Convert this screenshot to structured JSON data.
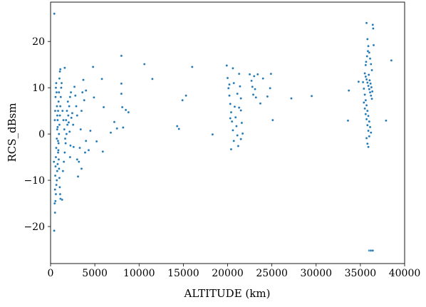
{
  "chart_data": {
    "type": "scatter",
    "xlabel": "ALTITUDE (km)",
    "ylabel": "RCS_dBsm",
    "xlim": [
      0,
      40000
    ],
    "ylim": [
      -28,
      28.5
    ],
    "xticks": [
      0,
      5000,
      10000,
      15000,
      20000,
      25000,
      30000,
      35000,
      40000
    ],
    "xtick_labels": [
      "0",
      "5000",
      "10000",
      "15000",
      "20000",
      "25000",
      "30000",
      "35000",
      "40000"
    ],
    "yticks": [
      -20,
      -10,
      0,
      10,
      20
    ],
    "ytick_labels": [
      "−20",
      "−10",
      "0",
      "10",
      "20"
    ],
    "grid": false,
    "marker_color": "#1f77b4",
    "points": [
      [
        420,
        26
      ],
      [
        380,
        -6
      ],
      [
        410,
        -20.9
      ],
      [
        460,
        -15
      ],
      [
        500,
        -12
      ],
      [
        530,
        -9
      ],
      [
        560,
        -7
      ],
      [
        600,
        -5
      ],
      [
        640,
        -3
      ],
      [
        700,
        -1
      ],
      [
        750,
        1
      ],
      [
        800,
        3
      ],
      [
        850,
        5
      ],
      [
        900,
        7
      ],
      [
        950,
        9
      ],
      [
        1000,
        12
      ],
      [
        1050,
        13.5
      ],
      [
        1100,
        14
      ],
      [
        500,
        -17
      ],
      [
        550,
        -14.5
      ],
      [
        600,
        -13
      ],
      [
        650,
        -11
      ],
      [
        700,
        -10
      ],
      [
        750,
        -8
      ],
      [
        800,
        -6.5
      ],
      [
        850,
        -4
      ],
      [
        900,
        -2
      ],
      [
        950,
        0
      ],
      [
        1000,
        2
      ],
      [
        1050,
        4
      ],
      [
        1100,
        6
      ],
      [
        1150,
        8
      ],
      [
        1200,
        10
      ],
      [
        1250,
        11
      ],
      [
        480,
        3
      ],
      [
        520,
        5
      ],
      [
        560,
        8
      ],
      [
        600,
        10
      ],
      [
        640,
        11
      ],
      [
        680,
        9
      ],
      [
        720,
        6
      ],
      [
        760,
        4
      ],
      [
        800,
        1.5
      ],
      [
        840,
        -1.5
      ],
      [
        880,
        -3.5
      ],
      [
        920,
        -5.5
      ],
      [
        960,
        -7.5
      ],
      [
        1000,
        -9.5
      ],
      [
        1040,
        -11.5
      ],
      [
        1080,
        -13
      ],
      [
        1120,
        -14
      ],
      [
        1300,
        -14.2
      ],
      [
        1400,
        -8
      ],
      [
        1500,
        -6
      ],
      [
        1600,
        -4
      ],
      [
        1700,
        -2
      ],
      [
        1800,
        0
      ],
      [
        1900,
        2
      ],
      [
        2000,
        4
      ],
      [
        2100,
        6
      ],
      [
        2200,
        8
      ],
      [
        2300,
        9
      ],
      [
        1350,
        5
      ],
      [
        1450,
        3
      ],
      [
        1550,
        1
      ],
      [
        1650,
        -1
      ],
      [
        1750,
        3
      ],
      [
        1850,
        5
      ],
      [
        1950,
        7
      ],
      [
        2050,
        2.5
      ],
      [
        2150,
        0.5
      ],
      [
        2250,
        -2.5
      ],
      [
        2350,
        3.5
      ],
      [
        2450,
        4.5
      ],
      [
        2550,
        2
      ],
      [
        2700,
        10.2
      ],
      [
        2800,
        8.3
      ],
      [
        2900,
        6
      ],
      [
        3000,
        4
      ],
      [
        3100,
        -9.2
      ],
      [
        3200,
        -6
      ],
      [
        3300,
        -3
      ],
      [
        3400,
        1
      ],
      [
        3500,
        5
      ],
      [
        3600,
        9
      ],
      [
        3700,
        11.7
      ],
      [
        3800,
        7.3
      ],
      [
        3900,
        -4
      ],
      [
        4000,
        -1.5
      ],
      [
        1600,
        14.3
      ],
      [
        2200,
        -5
      ],
      [
        2600,
        -2.8
      ],
      [
        3000,
        -5.5
      ],
      [
        3500,
        -7.5
      ],
      [
        4000,
        9.4
      ],
      [
        4300,
        -3.5
      ],
      [
        4500,
        0.7
      ],
      [
        4800,
        14.5
      ],
      [
        4900,
        7.9
      ],
      [
        5200,
        -1.6
      ],
      [
        5800,
        11.9
      ],
      [
        5900,
        -3.8
      ],
      [
        6000,
        5.8
      ],
      [
        6800,
        0.3
      ],
      [
        7200,
        2.6
      ],
      [
        7500,
        1.2
      ],
      [
        8000,
        16.9
      ],
      [
        8000,
        10.9
      ],
      [
        8000,
        8.7
      ],
      [
        8100,
        5.8
      ],
      [
        8200,
        1.4
      ],
      [
        8500,
        5.2
      ],
      [
        8800,
        4.7
      ],
      [
        10600,
        15.1
      ],
      [
        11500,
        11.9
      ],
      [
        14300,
        1.7
      ],
      [
        14500,
        1.1
      ],
      [
        14900,
        7.3
      ],
      [
        15300,
        8.3
      ],
      [
        16000,
        14.5
      ],
      [
        18300,
        -0.1
      ],
      [
        19900,
        14.8
      ],
      [
        20000,
        12.1
      ],
      [
        20100,
        9.9
      ],
      [
        20200,
        8.3
      ],
      [
        20300,
        6.5
      ],
      [
        20400,
        4.7
      ],
      [
        20500,
        2.7
      ],
      [
        20600,
        0.8
      ],
      [
        20700,
        -1.5
      ],
      [
        20400,
        -3.3
      ],
      [
        20200,
        10.7
      ],
      [
        20300,
        3.4
      ],
      [
        20600,
        14.2
      ],
      [
        20700,
        11.0
      ],
      [
        20800,
        5.9
      ],
      [
        20900,
        3.6
      ],
      [
        21000,
        1.7
      ],
      [
        21100,
        -0.3
      ],
      [
        21200,
        -2.6
      ],
      [
        21300,
        13.0
      ],
      [
        21400,
        10.3
      ],
      [
        21500,
        7.7
      ],
      [
        21500,
        5.1
      ],
      [
        21600,
        2.4
      ],
      [
        21700,
        0.1
      ],
      [
        21100,
        8.7
      ],
      [
        21300,
        5.7
      ],
      [
        21500,
        -1.1
      ],
      [
        22500,
        12.9
      ],
      [
        22700,
        11.5
      ],
      [
        22800,
        10.2
      ],
      [
        22900,
        8.5
      ],
      [
        23000,
        12.5
      ],
      [
        23100,
        9.7
      ],
      [
        23200,
        7.9
      ],
      [
        23400,
        12.9
      ],
      [
        23700,
        6.6
      ],
      [
        24000,
        12.0
      ],
      [
        24500,
        8.1
      ],
      [
        24800,
        9.9
      ],
      [
        24900,
        13.0
      ],
      [
        25100,
        3.0
      ],
      [
        27200,
        7.7
      ],
      [
        29500,
        8.2
      ],
      [
        33600,
        2.9
      ],
      [
        33700,
        9.4
      ],
      [
        34800,
        11.3
      ],
      [
        35300,
        11.2
      ],
      [
        35400,
        9.8
      ],
      [
        35500,
        8.5
      ],
      [
        35600,
        7.3
      ],
      [
        35700,
        6.2
      ],
      [
        35800,
        5.0
      ],
      [
        35900,
        3.9
      ],
      [
        36000,
        2.7
      ],
      [
        36100,
        1.5
      ],
      [
        36200,
        0.3
      ],
      [
        35700,
        -0.9
      ],
      [
        35800,
        -2.1
      ],
      [
        35900,
        -2.8
      ],
      [
        36000,
        -25.2
      ],
      [
        36100,
        -25.2
      ],
      [
        36200,
        -25.2
      ],
      [
        36400,
        -25.2
      ],
      [
        35700,
        24.0
      ],
      [
        35800,
        20.5
      ],
      [
        35900,
        19.0
      ],
      [
        36000,
        17.6
      ],
      [
        36100,
        16.3
      ],
      [
        36200,
        15.1
      ],
      [
        36300,
        13.8
      ],
      [
        35500,
        13.1
      ],
      [
        35600,
        12.4
      ],
      [
        35700,
        11.8
      ],
      [
        35800,
        11.1
      ],
      [
        35900,
        10.4
      ],
      [
        36000,
        9.7
      ],
      [
        36100,
        9.0
      ],
      [
        36200,
        8.3
      ],
      [
        36300,
        7.6
      ],
      [
        35600,
        14.9
      ],
      [
        35650,
        15.6
      ],
      [
        35750,
        16.8
      ],
      [
        35850,
        17.9
      ],
      [
        35950,
        12.8
      ],
      [
        36050,
        11.6
      ],
      [
        36150,
        10.9
      ],
      [
        36250,
        10.1
      ],
      [
        36350,
        9.2
      ],
      [
        36400,
        23.6
      ],
      [
        36450,
        22.8
      ],
      [
        36500,
        19.2
      ],
      [
        35400,
        6.8
      ],
      [
        35500,
        5.5
      ],
      [
        35600,
        4.3
      ],
      [
        35700,
        3.2
      ],
      [
        35800,
        1.9
      ],
      [
        35900,
        0.7
      ],
      [
        36000,
        -0.5
      ],
      [
        37900,
        2.9
      ],
      [
        38500,
        15.9
      ]
    ]
  }
}
